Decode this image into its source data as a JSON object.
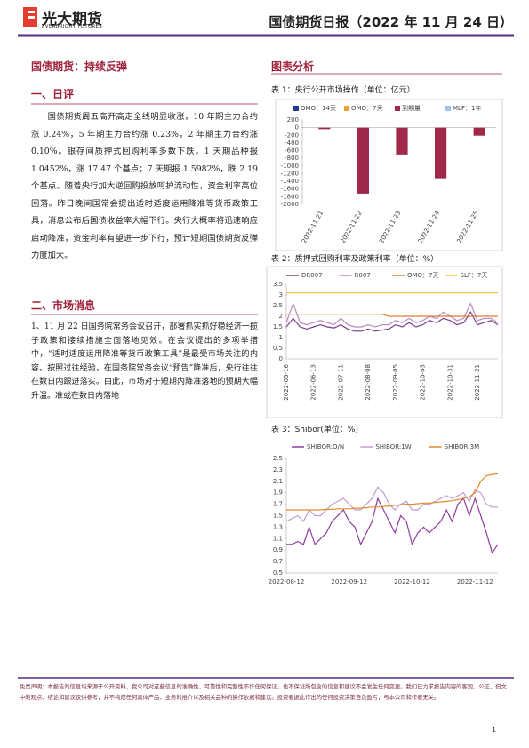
{
  "header": {
    "logo_cn": "光大期货",
    "logo_en": "EVERBRIGHT FUTURES",
    "title": "国债期货日报（2022 年 11 月 24 日）"
  },
  "left": {
    "heading": "国债期货：持续反弹",
    "section1": {
      "title": "一、日评",
      "text": "国债期货周五高开高走全线明显收涨，10 年期主力合约涨 0.24%，5 年期主力合约涨 0.23%，2 年期主力合约涨 0.10%。银存间质押式回购利率多数下跌。1 天期品种报 1.0452%，涨 17.47 个基点；7 天期报 1.5982%，跌 2.19 个基点。随着央行加大逆回购投放呵护流动性，资金利率高位回落。昨日晚间国常会提出适时适度运用降准等货币政策工具，消息公布后国债收益率大幅下行。央行大概率将迅速响应启动降准，资金利率有望进一步下行，预计短期国债期货反弹力度加大。"
    },
    "section2": {
      "title": "二、市场消息",
      "text": "1、11 月 22 日国务院常务会议召开，部署抓实抓好稳经济一揽子政策和接续措施全面落地见效。在会议提出的多项举措中，“适时适度运用降准等货币政策工具”是最受市场关注的内容。按照过往经验，在国务院常务会议“预告”降准后，央行往往在数日内跟进落实。由此，市场对于短期内降准落地的预期大幅升温。准或在数日内落地"
    }
  },
  "right": {
    "heading": "图表分析"
  },
  "chart_data": [
    {
      "type": "bar",
      "title": "表 1：央行公开市场操作（单位：亿元）",
      "categories": [
        "2022-11-21",
        "2022-11-22",
        "2022-11-23",
        "2022-11-24",
        "2022-11-25"
      ],
      "series": [
        {
          "name": "OMO：14天",
          "color": "#1f3a93",
          "values": [
            null,
            null,
            null,
            null,
            null
          ]
        },
        {
          "name": "OMO：7天",
          "color": "#f0a030",
          "values": [
            null,
            null,
            null,
            null,
            null
          ]
        },
        {
          "name": "到期量",
          "color": "#a0284a",
          "values": [
            -40,
            -1720,
            -700,
            -1320,
            -210
          ]
        },
        {
          "name": "MLF：1年",
          "color": "#9dc3e6",
          "values": [
            null,
            null,
            null,
            null,
            null
          ]
        }
      ],
      "ylim": [
        -2000,
        200
      ],
      "yticks": [
        200,
        0,
        -200,
        -400,
        -600,
        -800,
        -1000,
        -1200,
        -1400,
        -1600,
        -1800,
        -2000
      ]
    },
    {
      "type": "line",
      "title": "表 2：质押式回购利率及政策利率（单位：%）",
      "categories": [
        "2022-05-16",
        null,
        null,
        null,
        "2022-06-13",
        null,
        null,
        null,
        "2022-07-11",
        null,
        null,
        null,
        "2022-08-08",
        null,
        null,
        null,
        "2022-09-05",
        null,
        null,
        null,
        "2022-10-03",
        null,
        null,
        null,
        "2022-10-31",
        null,
        null,
        null,
        "2022-11-21",
        null,
        null,
        null
      ],
      "series": [
        {
          "name": "DR007",
          "color": "#7b3f8c",
          "values": [
            1.5,
            1.9,
            1.5,
            1.4,
            1.5,
            1.6,
            1.5,
            1.45,
            1.6,
            1.4,
            1.3,
            1.3,
            1.4,
            1.3,
            1.35,
            1.4,
            1.6,
            1.5,
            1.7,
            1.5,
            1.6,
            1.8,
            1.7,
            1.9,
            1.8,
            1.6,
            1.7,
            2.2,
            1.6,
            1.7,
            1.8,
            1.6
          ]
        },
        {
          "name": "R007",
          "color": "#b48ac0",
          "values": [
            1.7,
            2.6,
            1.7,
            1.6,
            1.7,
            1.8,
            1.7,
            1.6,
            1.9,
            1.6,
            1.5,
            1.5,
            1.6,
            1.5,
            1.6,
            1.6,
            1.8,
            1.7,
            1.9,
            1.7,
            1.8,
            2.0,
            1.9,
            2.2,
            2.0,
            1.8,
            1.9,
            2.6,
            1.8,
            1.9,
            1.9,
            1.7
          ]
        },
        {
          "name": "OMO：7天",
          "color": "#e07b39",
          "values": [
            2.1,
            2.1,
            2.1,
            2.1,
            2.1,
            2.1,
            2.1,
            2.1,
            2.1,
            2.1,
            2.1,
            2.1,
            2.1,
            2.1,
            2.1,
            2.0,
            2.0,
            2.0,
            2.0,
            2.0,
            2.0,
            2.0,
            2.0,
            2.0,
            2.0,
            2.0,
            2.0,
            2.0,
            2.0,
            2.0,
            2.0,
            2.0
          ]
        },
        {
          "name": "SLF：7天",
          "color": "#f2c744",
          "values": [
            3.1,
            3.1,
            3.1,
            3.1,
            3.1,
            3.1,
            3.1,
            3.1,
            3.1,
            3.1,
            3.1,
            3.1,
            3.1,
            3.1,
            3.1,
            3.1,
            3.1,
            3.1,
            3.1,
            3.1,
            3.1,
            3.1,
            3.1,
            3.1,
            3.1,
            3.1,
            3.1,
            3.1,
            3.1,
            3.1,
            3.1,
            3.1
          ]
        }
      ],
      "ylim": [
        0,
        3.5
      ],
      "yticks": [
        0,
        0.5,
        1,
        1.5,
        2,
        2.5,
        3,
        3.5
      ],
      "rotate_x": true
    },
    {
      "type": "line",
      "title": "表 3：Shibor(单位：%)",
      "categories": [
        "2022-08-12",
        null,
        null,
        null,
        null,
        null,
        null,
        null,
        null,
        null,
        null,
        "2022-09-12",
        null,
        null,
        null,
        null,
        null,
        null,
        null,
        null,
        null,
        null,
        "2022-10-12",
        null,
        null,
        null,
        null,
        null,
        null,
        null,
        null,
        null,
        null,
        "2022-11-12",
        null,
        null,
        null,
        null
      ],
      "series": [
        {
          "name": "SHIBOR:O/N",
          "color": "#8e3fa0",
          "values": [
            1.0,
            1.0,
            1.05,
            1.0,
            1.3,
            1.0,
            1.1,
            1.2,
            1.4,
            1.5,
            1.6,
            1.4,
            1.3,
            1.0,
            1.2,
            1.4,
            1.8,
            1.6,
            1.4,
            1.2,
            1.5,
            1.4,
            1.0,
            1.2,
            1.3,
            1.2,
            1.3,
            1.4,
            1.6,
            1.4,
            1.7,
            1.8,
            1.5,
            1.8,
            1.5,
            1.2,
            0.85,
            1.0
          ]
        },
        {
          "name": "SHIBOR:1W",
          "color": "#c39bd3",
          "values": [
            1.4,
            1.45,
            1.5,
            1.4,
            1.6,
            1.5,
            1.5,
            1.6,
            1.7,
            1.75,
            1.8,
            1.7,
            1.6,
            1.6,
            1.7,
            1.8,
            2.0,
            1.9,
            1.7,
            1.6,
            1.7,
            1.75,
            1.6,
            1.6,
            1.7,
            1.7,
            1.75,
            1.8,
            1.85,
            1.8,
            1.85,
            1.9,
            1.75,
            1.95,
            1.9,
            1.7,
            1.65,
            1.65
          ]
        },
        {
          "name": "SHIBOR:3M",
          "color": "#e08a2c",
          "values": [
            1.6,
            1.6,
            1.6,
            1.6,
            1.6,
            1.6,
            1.6,
            1.61,
            1.61,
            1.62,
            1.62,
            1.62,
            1.63,
            1.63,
            1.64,
            1.65,
            1.65,
            1.66,
            1.67,
            1.68,
            1.69,
            1.7,
            1.7,
            1.71,
            1.72,
            1.72,
            1.73,
            1.74,
            1.75,
            1.76,
            1.78,
            1.8,
            1.83,
            1.9,
            2.1,
            2.2,
            2.22,
            2.23
          ]
        }
      ],
      "ylim": [
        0.5,
        2.5
      ],
      "yticks": [
        0.5,
        0.7,
        0.9,
        1.1,
        1.3,
        1.5,
        1.7,
        1.9,
        2.1,
        2.3,
        2.5
      ],
      "rotate_x": false
    }
  ],
  "footer": {
    "disclaimer": "免责声明：本报告的信息均来源于公开资料，我公司对这些信息的准确性、可靠性和完整性不作任何保证，也不保证所包含的信息和建议不会发生任何变更。我们已力求报告内容的客观、公正，但文中的观点、结论和建议仅供参考，并不构成任何具体产品、业务的推介以及相关品种的操作依据和建议。投资者据此作出的任何投资决策自负盈亏，与本公司和作者无关。",
    "page": "1"
  }
}
